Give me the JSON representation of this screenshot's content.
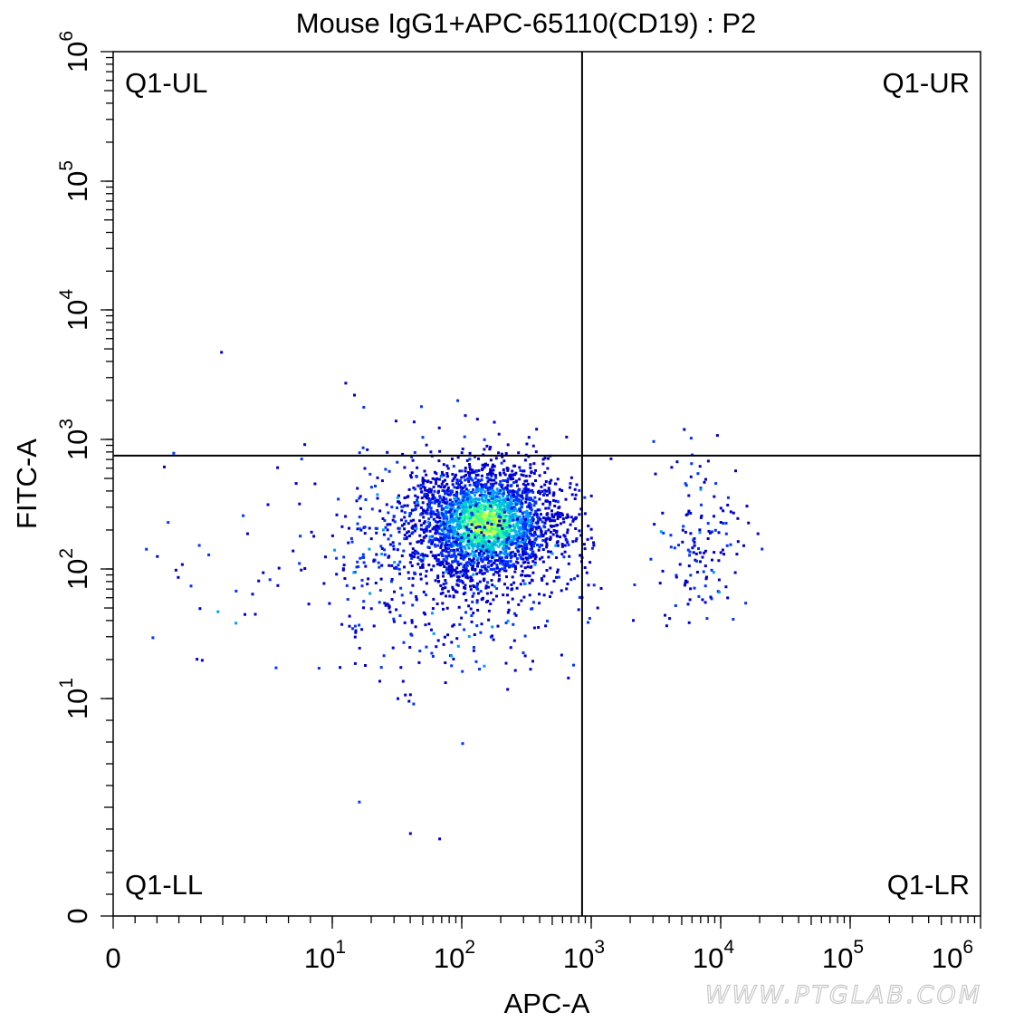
{
  "chart_data": {
    "type": "scatter",
    "title": "Mouse IgG1+APC-65110(CD19) : P2",
    "xlabel": "APC-A",
    "ylabel": "FITC-A",
    "x_scale": "biexponential (linear near 0, log above 10)",
    "y_scale": "biexponential (linear near 0, log above 10)",
    "xlim": [
      0,
      1000000
    ],
    "ylim": [
      0,
      1000000
    ],
    "x_ticks": [
      {
        "base": "0",
        "exp": ""
      },
      {
        "base": "10",
        "exp": "1"
      },
      {
        "base": "10",
        "exp": "2"
      },
      {
        "base": "10",
        "exp": "3"
      },
      {
        "base": "10",
        "exp": "4"
      },
      {
        "base": "10",
        "exp": "5"
      },
      {
        "base": "10",
        "exp": "6"
      }
    ],
    "y_ticks": [
      {
        "base": "0",
        "exp": ""
      },
      {
        "base": "10",
        "exp": "1"
      },
      {
        "base": "10",
        "exp": "2"
      },
      {
        "base": "10",
        "exp": "3"
      },
      {
        "base": "10",
        "exp": "4"
      },
      {
        "base": "10",
        "exp": "5"
      },
      {
        "base": "10",
        "exp": "6"
      }
    ],
    "gate": {
      "x_threshold": 850,
      "y_threshold": 750
    },
    "quadrants": {
      "upper_left": "Q1-UL",
      "upper_right": "Q1-UR",
      "lower_left": "Q1-LL",
      "lower_right": "Q1-LR"
    },
    "density_colors": [
      "#0000cc",
      "#0033ff",
      "#0099ff",
      "#00cccc",
      "#33ff99",
      "#ccff33"
    ],
    "populations": [
      {
        "name": "main-negative-cluster",
        "count": 2400,
        "x_center": 150,
        "y_center": 230,
        "x_spread_decades": 0.28,
        "y_spread_decades": 0.22
      },
      {
        "name": "scattered-negative-low",
        "count": 700,
        "x_center": 60,
        "y_center": 120,
        "x_spread_decades": 0.55,
        "y_spread_decades": 0.45
      },
      {
        "name": "apc-positive-cluster",
        "count": 140,
        "x_center": 7000,
        "y_center": 180,
        "x_spread_decades": 0.18,
        "y_spread_decades": 0.35
      }
    ],
    "watermark": "WWW.PTGLAB.COM"
  }
}
